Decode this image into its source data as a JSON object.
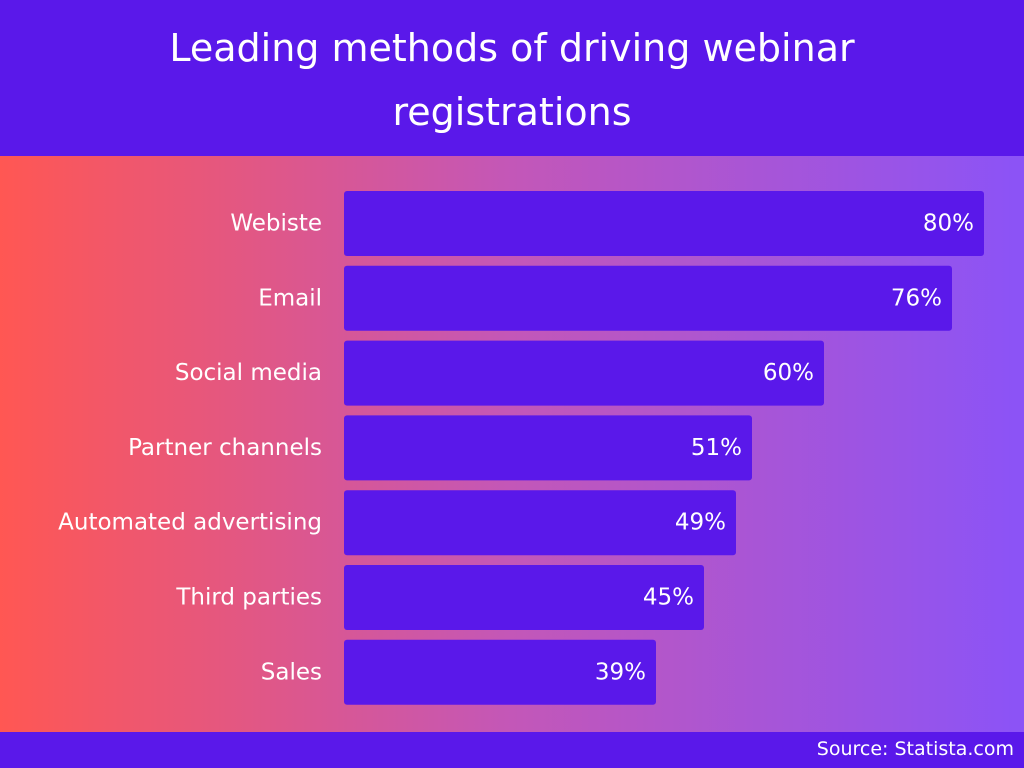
{
  "header": {
    "title": "Leading methods of driving webinar registrations"
  },
  "footer": {
    "source": "Source: Statista.com"
  },
  "colors": {
    "bar": "#5a18ea",
    "header_bg": "#5a18ea",
    "gradient_left": "#ff5753",
    "gradient_mid": "#c357b8",
    "gradient_right": "#8b53f7",
    "text": "#ffffff"
  },
  "chart_data": {
    "type": "bar",
    "orientation": "horizontal",
    "title": "Leading methods of driving webinar registrations",
    "categories": [
      "Webiste",
      "Email",
      "Social media",
      "Partner channels",
      "Automated advertising",
      "Third parties",
      "Sales"
    ],
    "values": [
      80,
      76,
      60,
      51,
      49,
      45,
      39
    ],
    "value_labels": [
      "80%",
      "76%",
      "60%",
      "51%",
      "49%",
      "45%",
      "39%"
    ],
    "unit": "%",
    "xlim": [
      0,
      80
    ],
    "grid": false,
    "legend": "none"
  }
}
